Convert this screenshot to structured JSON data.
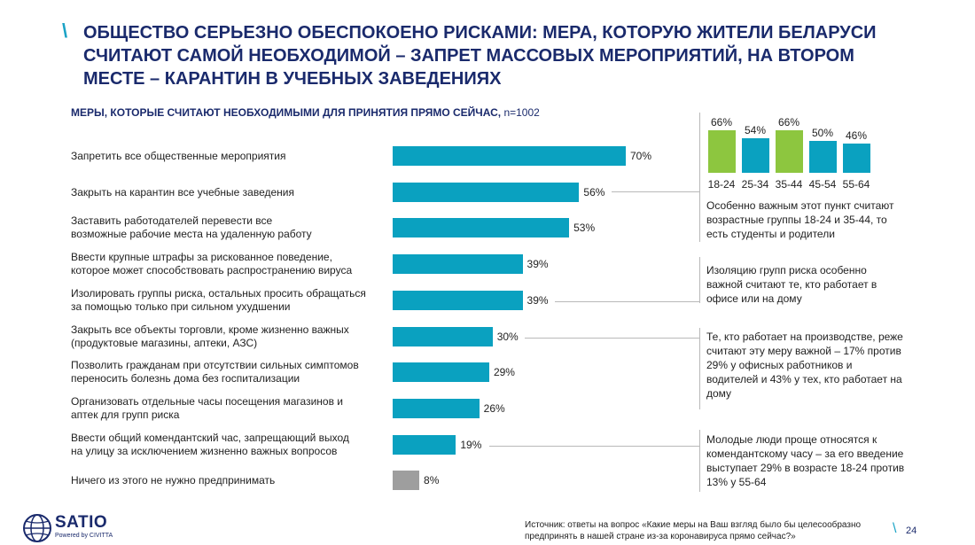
{
  "header": {
    "title": "ОБЩЕСТВО СЕРЬЕЗНО ОБЕСПОКОЕНО РИСКАМИ: МЕРА, КОТОРУЮ ЖИТЕЛИ БЕЛАРУСИ СЧИТАЮТ САМОЙ НЕОБХОДИМОЙ – ЗАПРЕТ МАССОВЫХ МЕРОПРИЯТИЙ, НА ВТОРОМ МЕСТЕ – КАРАНТИН В УЧЕБНЫХ ЗАВЕДЕНИЯХ",
    "slash": "\\"
  },
  "colors": {
    "accent": "#1ba3c6",
    "bar_main": "#0aa1c0",
    "bar_none": "#9e9e9e",
    "green": "#8dc63f",
    "title": "#1a2a6c"
  },
  "chart_data": [
    {
      "type": "bar",
      "orientation": "horizontal",
      "title": "МЕРЫ, КОТОРЫЕ СЧИТАЮТ НЕОБХОДИМЫМИ ДЛЯ ПРИНЯТИЯ ПРЯМО СЕЙЧАС,",
      "sample": "n=1002",
      "unit": "%",
      "categories": [
        "Запретить все общественные мероприятия",
        "Закрыть на карантин все учебные заведения",
        "Заставить работодателей перевести все возможные рабочие места на удаленную работу",
        "Ввести крупные штрафы за рискованное поведение, которое может способствовать распространению вируса",
        "Изолировать группы риска, остальных просить обращаться за помощью только при сильном ухудшении",
        "Закрыть все объекты торговли, кроме жизненно важных (продуктовые магазины, аптеки, АЗС)",
        "Позволить гражданам при отсутствии сильных симптомов переносить болезнь дома без госпитализации",
        "Организовать отдельные часы посещения магазинов и аптек для групп риска",
        "Ввести общий комендантский час, запрещающий выход на улицу за исключением жизненно важных вопросов",
        "Ничего из этого не нужно предпринимать"
      ],
      "label_lines": [
        [
          "Запретить все общественные мероприятия"
        ],
        [
          "Закрыть на карантин все учебные заведения"
        ],
        [
          "Заставить работодателей перевести все",
          "возможные рабочие места на удаленную работу"
        ],
        [
          "Ввести крупные штрафы за рискованное поведение,",
          "которое может способствовать распространению вируса"
        ],
        [
          "Изолировать группы риска, остальных просить обращаться",
          "за помощью только при сильном ухудшении"
        ],
        [
          "Закрыть все объекты торговли, кроме жизненно важных",
          "(продуктовые магазины, аптеки, АЗС)"
        ],
        [
          "Позволить гражданам при отсутствии сильных симптомов",
          "переносить болезнь дома без госпитализации"
        ],
        [
          "Организовать отдельные часы посещения магазинов и",
          "аптек для групп риска"
        ],
        [
          "Ввести общий комендантский час, запрещающий выход",
          "на улицу за исключением жизненно важных вопросов"
        ],
        [
          "Ничего из этого не нужно предпринимать"
        ]
      ],
      "values": [
        70,
        56,
        53,
        39,
        39,
        30,
        29,
        26,
        19,
        8
      ],
      "value_labels": [
        "70%",
        "56%",
        "53%",
        "39%",
        "39%",
        "30%",
        "29%",
        "26%",
        "19%",
        "8%"
      ],
      "highlight_last_gray": true
    },
    {
      "type": "bar",
      "orientation": "vertical",
      "categories": [
        "18-24",
        "25-34",
        "35-44",
        "45-54",
        "55-64"
      ],
      "values": [
        66,
        54,
        66,
        50,
        46
      ],
      "value_labels": [
        "66%",
        "54%",
        "66%",
        "50%",
        "46%"
      ],
      "highlighted": [
        true,
        false,
        true,
        false,
        false
      ],
      "ylim": [
        0,
        100
      ]
    }
  ],
  "notes": [
    "Особенно важным этот пункт считают возрастные группы 18-24 и 35-44, то есть студенты и родители",
    "Изоляцию групп риска особенно важной считают те, кто работает в офисе или на дому",
    "Те, кто работает на производстве, реже считают эту меру важной – 17% против 29% у офисных работников и водителей и 43% у тех, кто работает на дому",
    "Молодые люди проще относятся к комендантскому часу – за его введение выступает 29% в возрасте 18-24 против 13% у 55-64"
  ],
  "footer": {
    "logo_text": "SATIO",
    "logo_sub": "Powered by CIVITTA",
    "source": "Источник: ответы на вопрос «Какие меры на Ваш взгляд было бы целесообразно предпринять в нашей стране из-за коронавируса прямо сейчас?»",
    "page_number": "24"
  }
}
